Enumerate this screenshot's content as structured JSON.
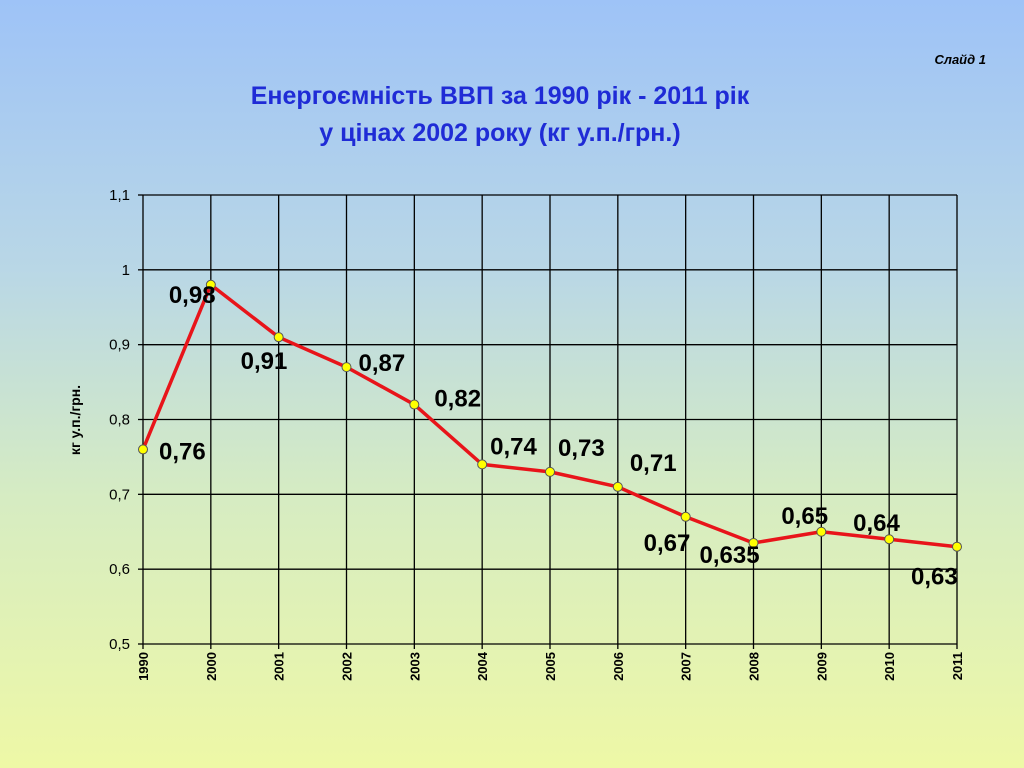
{
  "slide_label": "Слайд 1",
  "title_line1": "Енергоємність ВВП за 1990 рік - 2011 рік",
  "title_line2": "у цінах 2002 року (кг у.п./грн.)",
  "colors": {
    "title": "#1f2bd6",
    "line": "#e8141a",
    "marker_fill": "#ffff00",
    "grid": "#000000",
    "plot_background": "transparent"
  },
  "chart_data": {
    "type": "line",
    "title": "Енергоємність ВВП за 1990 рік - 2011 рік у цінах 2002 року (кг у.п./грн.)",
    "xlabel": "",
    "ylabel": "кг у.п./грн.",
    "categories": [
      "1990",
      "2000",
      "2001",
      "2002",
      "2003",
      "2004",
      "2005",
      "2006",
      "2007",
      "2008",
      "2009",
      "2010",
      "2011"
    ],
    "series": [
      {
        "values": [
          0.76,
          0.98,
          0.91,
          0.87,
          0.82,
          0.74,
          0.73,
          0.71,
          0.67,
          0.635,
          0.65,
          0.64,
          0.63
        ],
        "labels": [
          "0,76",
          "0,98",
          "0,91",
          "0,87",
          "0,82",
          "0,74",
          "0,73",
          "0,71",
          "0,67",
          "0,635",
          "0,65",
          "0,64",
          "0,63"
        ]
      }
    ],
    "ylim": [
      0.5,
      1.1
    ],
    "yticks": [
      0.5,
      0.6,
      0.7,
      0.8,
      0.9,
      1.0,
      1.1
    ],
    "ytick_labels": [
      "0,5",
      "0,6",
      "0,7",
      "0,8",
      "0,9",
      "1",
      "1,1"
    ],
    "grid": true,
    "legend": "none"
  }
}
